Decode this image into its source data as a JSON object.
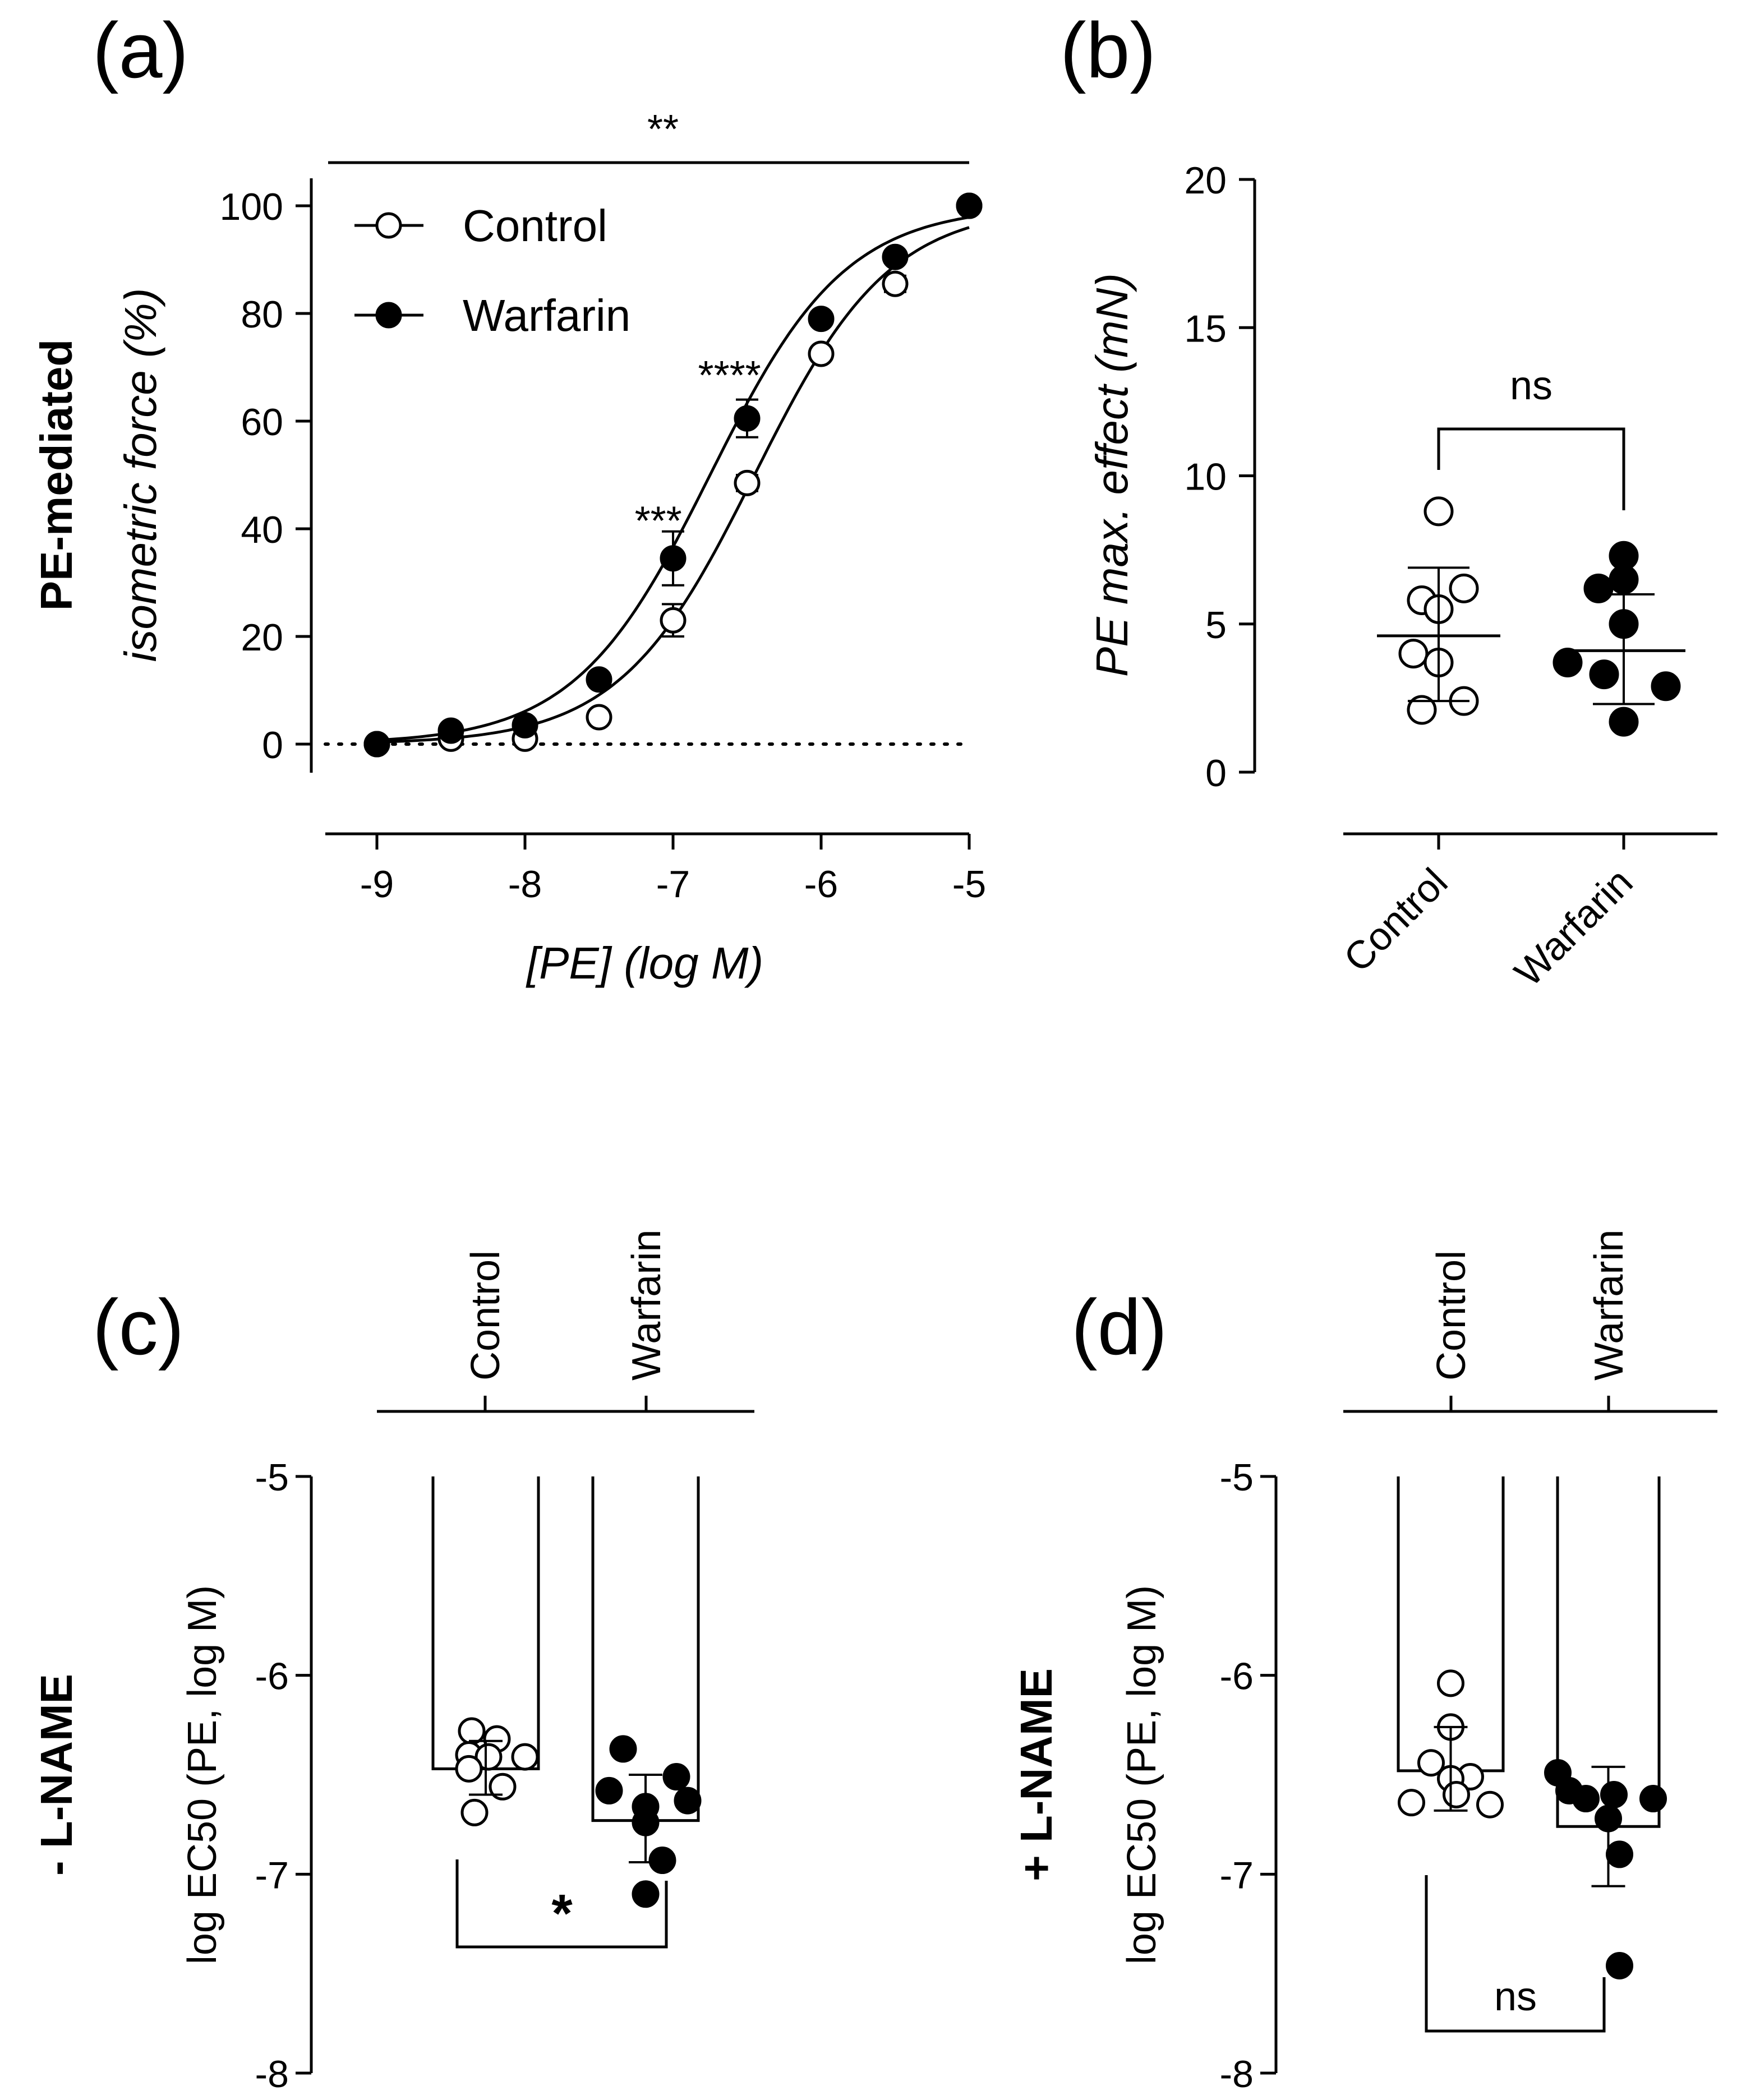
{
  "chart_data": [
    {
      "panel": "(a)",
      "type": "line",
      "ylabel_line1": "PE-mediated",
      "ylabel_line2": "isometric force (%)",
      "xlabel": "[PE] (log M)",
      "xlim": [
        -9,
        -5
      ],
      "ylim": [
        0,
        100
      ],
      "xticks": [
        -9,
        -8,
        -7,
        -6,
        -5
      ],
      "yticks": [
        0,
        20,
        40,
        60,
        80,
        100
      ],
      "x": [
        -9,
        -8.5,
        -8,
        -7.5,
        -7,
        -6.5,
        -6,
        -5.5,
        -5
      ],
      "series": [
        {
          "name": "Control",
          "marker": "open",
          "values": [
            0,
            1,
            1,
            5,
            23,
            48.5,
            72.5,
            85.5,
            100
          ],
          "err": [
            0,
            0,
            0,
            0,
            3,
            1.5,
            0,
            1.5,
            0
          ],
          "fit_ec50": -6.45,
          "fit_hill": 0.95
        },
        {
          "name": "Warfarin",
          "marker": "filled",
          "values": [
            0,
            2.5,
            3.5,
            12,
            34.5,
            60.5,
            79,
            90.5,
            100
          ],
          "err": [
            0,
            0,
            0,
            0,
            5,
            3.5,
            0,
            0,
            0
          ],
          "fit_ec50": -6.75,
          "fit_hill": 0.95
        }
      ],
      "annotations": [
        {
          "text": "**",
          "x_from": -9.35,
          "x_to": -5,
          "y": 108
        },
        {
          "text": "***",
          "x": -7.1,
          "y": 41
        },
        {
          "text": "****",
          "x": -6.6,
          "y": 68
        }
      ],
      "legend": "top-left"
    },
    {
      "panel": "(b)",
      "type": "scatter",
      "ylabel": "PE max. effect (mN)",
      "ylim": [
        0,
        20
      ],
      "yticks": [
        0,
        5,
        10,
        15,
        20
      ],
      "categories": [
        "Control",
        "Warfarin"
      ],
      "series": [
        {
          "name": "Control",
          "marker": "open",
          "points": [
            8.8,
            6.2,
            5.8,
            5.5,
            4,
            3.7,
            2.4,
            2.1
          ],
          "mean": 4.6,
          "sd": [
            2.4,
            6.9
          ]
        },
        {
          "name": "Warfarin",
          "marker": "filled",
          "points": [
            7.3,
            6.5,
            6.2,
            5,
            3.7,
            3.3,
            2.9,
            1.7
          ],
          "mean": 4.1,
          "sd": [
            2.3,
            6
          ]
        }
      ],
      "annotation": "ns"
    },
    {
      "panel": "(c)",
      "type": "bar",
      "side_label": "- L-NAME",
      "ylabel": "log EC50 (PE, log M)",
      "ylim": [
        -8,
        -5
      ],
      "yticks": [
        -5,
        -6,
        -7,
        -8
      ],
      "categories": [
        "Control",
        "Warfarin"
      ],
      "values": [
        -6.47,
        -6.73
      ],
      "sd": [
        [
          -6.6,
          -6.33
        ],
        [
          -6.94,
          -6.5
        ]
      ],
      "points": [
        [
          -6.28,
          -6.32,
          -6.4,
          -6.41,
          -6.41,
          -6.47,
          -6.56,
          -6.69
        ],
        [
          -6.37,
          -6.51,
          -6.58,
          -6.63,
          -6.66,
          -6.74,
          -6.93,
          -7.1
        ]
      ],
      "annotation": "*"
    },
    {
      "panel": "(d)",
      "type": "bar",
      "side_label": "+ L-NAME",
      "ylabel": "log EC50 (PE, log M)",
      "ylim": [
        -8,
        -5
      ],
      "yticks": [
        -5,
        -6,
        -7,
        -8
      ],
      "categories": [
        "Control",
        "Warfarin"
      ],
      "values": [
        -6.48,
        -6.76
      ],
      "sd": [
        [
          -6.68,
          -6.26
        ],
        [
          -7.06,
          -6.46
        ]
      ],
      "points": [
        [
          -6.04,
          -6.26,
          -6.44,
          -6.51,
          -6.52,
          -6.6,
          -6.64,
          -6.65
        ],
        [
          -6.49,
          -6.58,
          -6.6,
          -6.62,
          -6.62,
          -6.72,
          -6.9,
          -7.46
        ]
      ],
      "annotation": "ns"
    }
  ]
}
